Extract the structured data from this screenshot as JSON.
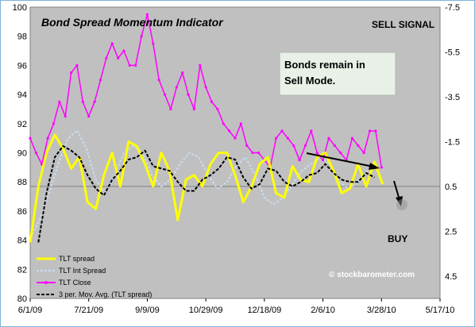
{
  "chart_data": {
    "type": "line",
    "title": "Bond Spread Momentum Indicator",
    "signal_label": "SELL SIGNAL",
    "buy_label": "BUY",
    "annotation": "Bonds remain in Sell Mode.",
    "watermark": "© stockbarometer.com",
    "x_tick_labels": [
      "6/1/09",
      "7/21/09",
      "9/9/09",
      "10/29/09",
      "12/18/09",
      "2/6/10",
      "3/28/10",
      "5/17/10"
    ],
    "x_range_days": [
      0,
      350
    ],
    "ylim_left": [
      80,
      100
    ],
    "y_left_ticks": [
      80,
      82,
      84,
      86,
      88,
      90,
      92,
      94,
      96,
      98,
      100
    ],
    "ylim_right": [
      5.5,
      -7.5
    ],
    "y_right_ticks": [
      "-7.5",
      "-5.5",
      "-3.5",
      "-1.5",
      "0.5",
      "2.5",
      "4.5"
    ],
    "y_right_tick_values": [
      -7.5,
      -5.5,
      -3.5,
      -1.5,
      0.5,
      2.5,
      4.5
    ],
    "grid": "horizontal at 0.5 (right axis)",
    "legend_position": "bottom-left",
    "colors": {
      "plot_bg": "#c0c0c0",
      "tlt_close": "#ff00ff",
      "tlt_spread": "#ffff00",
      "tlt_int_spread": "#c8dcf0",
      "mov_avg": "#000000"
    },
    "series": [
      {
        "name": "TLT spread",
        "axis": "right",
        "x": [
          0,
          7,
          14,
          21,
          28,
          35,
          42,
          49,
          56,
          63,
          70,
          77,
          84,
          91,
          98,
          105,
          112,
          119,
          126,
          133,
          140,
          147,
          154,
          161,
          168,
          175,
          182,
          189,
          196,
          203,
          210,
          217,
          224,
          231,
          238,
          245,
          252,
          259,
          266,
          273,
          280,
          287,
          294,
          301
        ],
        "values": [
          3.0,
          0.5,
          -1.0,
          -1.8,
          -1.2,
          -0.3,
          -0.8,
          1.2,
          1.5,
          0.0,
          -1.0,
          0.5,
          -1.5,
          -1.3,
          -0.5,
          0.5,
          -1.0,
          -0.2,
          2.0,
          0.2,
          0.0,
          0.5,
          -0.5,
          -1.0,
          -1.0,
          0.0,
          1.2,
          0.5,
          -0.5,
          -0.8,
          0.8,
          1.0,
          -0.4,
          0.2,
          0.3,
          -0.8,
          -1.0,
          -0.2,
          0.8,
          0.6,
          -0.5,
          0.5,
          -0.6,
          0.4
        ]
      },
      {
        "name": "TLT Int Spread",
        "axis": "right",
        "x": [
          0,
          8,
          16,
          24,
          32,
          40,
          48,
          56,
          64,
          72,
          80,
          88,
          96,
          104,
          112,
          120,
          128,
          136,
          144,
          152,
          160,
          168,
          176,
          184,
          192,
          200,
          208,
          216,
          224,
          232,
          240,
          248,
          256,
          264,
          272,
          280,
          288,
          296
        ],
        "values": [
          2.8,
          2.0,
          0.8,
          -0.5,
          -1.6,
          -2.0,
          -1.2,
          0.2,
          0.8,
          0.0,
          -1.0,
          -1.3,
          -1.0,
          0.0,
          0.5,
          0.2,
          -0.5,
          -1.0,
          -0.8,
          0.0,
          0.6,
          0.3,
          -0.4,
          -0.8,
          0.0,
          1.0,
          1.3,
          1.0,
          0.4,
          -0.2,
          -0.5,
          -0.8,
          -0.5,
          0.3,
          0.6,
          0.3,
          -0.2,
          -0.5
        ]
      },
      {
        "name": "TLT Close",
        "axis": "left",
        "x": [
          0,
          5,
          10,
          15,
          20,
          25,
          30,
          35,
          40,
          45,
          50,
          55,
          60,
          65,
          70,
          75,
          80,
          85,
          90,
          95,
          100,
          105,
          110,
          115,
          120,
          125,
          130,
          135,
          140,
          145,
          150,
          155,
          160,
          165,
          170,
          175,
          180,
          185,
          190,
          195,
          200,
          205,
          210,
          215,
          220,
          225,
          230,
          235,
          240,
          245,
          250,
          255,
          260,
          265,
          270,
          275,
          280,
          285,
          290,
          295,
          300
        ],
        "values": [
          91.0,
          90.0,
          89.2,
          91.0,
          92.0,
          93.5,
          92.5,
          95.5,
          96.0,
          93.5,
          92.5,
          93.5,
          95.0,
          96.5,
          97.5,
          96.5,
          97.0,
          96.0,
          96.0,
          98.0,
          99.5,
          97.5,
          95.0,
          94.0,
          93.0,
          94.5,
          95.5,
          94.0,
          93.0,
          96.0,
          94.5,
          93.5,
          93.0,
          92.0,
          91.5,
          91.0,
          92.0,
          90.5,
          90.0,
          90.0,
          89.5,
          89.0,
          91.0,
          91.5,
          91.0,
          90.5,
          89.5,
          90.5,
          91.5,
          90.0,
          89.5,
          91.0,
          90.5,
          90.0,
          89.5,
          91.0,
          90.5,
          90.0,
          91.5,
          91.5,
          89.0
        ]
      },
      {
        "name": "3 per. Mov. Avg. (TLT spread)",
        "axis": "right",
        "x": [
          7,
          14,
          21,
          28,
          35,
          42,
          49,
          56,
          63,
          70,
          77,
          84,
          91,
          98,
          105,
          112,
          119,
          126,
          133,
          140,
          147,
          154,
          161,
          168,
          175,
          182,
          189,
          196,
          203,
          210,
          217,
          224,
          231,
          238,
          245,
          252,
          259,
          266,
          273,
          280,
          287,
          294
        ],
        "values": [
          3.0,
          0.8,
          -0.8,
          -1.3,
          -1.1,
          -0.8,
          0.0,
          0.6,
          0.9,
          0.2,
          -0.2,
          -0.7,
          -0.8,
          -1.1,
          -0.4,
          -0.3,
          -0.2,
          0.3,
          0.7,
          0.7,
          0.2,
          0.0,
          -0.3,
          -0.8,
          -0.7,
          0.1,
          0.6,
          0.4,
          -0.3,
          -0.2,
          0.3,
          0.5,
          0.3,
          0.0,
          -0.1,
          -0.5,
          -0.1,
          0.2,
          0.3,
          0.3,
          -0.1,
          0.1
        ]
      }
    ],
    "legend": [
      "TLT spread",
      "TLT Int Spread",
      "TLT Close",
      "3 per. Mov. Avg. (TLT spread)"
    ]
  }
}
